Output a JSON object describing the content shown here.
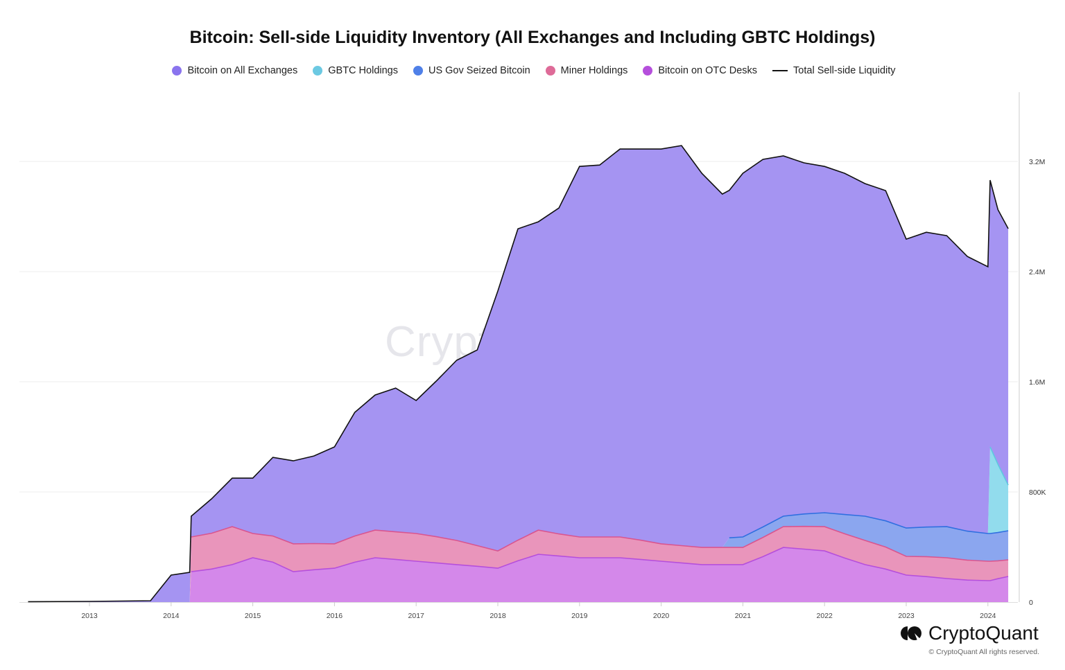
{
  "chart_data": {
    "type": "area",
    "stacked": true,
    "title": "Bitcoin: Sell-side Liquidity Inventory (All Exchanges and Including GBTC Holdings)",
    "legend_position": "top",
    "grid": true,
    "ylim": [
      0,
      3600000
    ],
    "y_ticks": [
      "0",
      "800K",
      "1.6M",
      "2.4M",
      "3.2M"
    ],
    "y_tick_values": [
      0,
      800000,
      1600000,
      2400000,
      3200000
    ],
    "x_ticks": [
      "2013",
      "2014",
      "2015",
      "2016",
      "2017",
      "2018",
      "2019",
      "2020",
      "2021",
      "2022",
      "2023",
      "2024"
    ],
    "x": [
      "2012-04-01",
      "2013-01-01",
      "2013-10-01",
      "2014-01-01",
      "2014-03-25",
      "2014-04-01",
      "2014-07-01",
      "2014-10-01",
      "2015-01-01",
      "2015-04-01",
      "2015-07-01",
      "2015-10-01",
      "2016-01-01",
      "2016-04-01",
      "2016-07-01",
      "2016-10-01",
      "2017-01-01",
      "2017-04-01",
      "2017-07-01",
      "2017-10-01",
      "2018-01-01",
      "2018-04-01",
      "2018-07-01",
      "2018-10-01",
      "2019-01-01",
      "2019-04-01",
      "2019-07-01",
      "2019-10-01",
      "2020-01-01",
      "2020-04-01",
      "2020-07-01",
      "2020-10-01",
      "2020-11-01",
      "2021-01-01",
      "2021-04-01",
      "2021-07-01",
      "2021-10-01",
      "2022-01-01",
      "2022-04-01",
      "2022-07-01",
      "2022-10-01",
      "2023-01-01",
      "2023-04-01",
      "2023-07-01",
      "2023-10-01",
      "2024-01-01",
      "2024-01-11",
      "2024-02-15",
      "2024-04-01"
    ],
    "series": [
      {
        "name": "Bitcoin on OTC Desks",
        "color": "#b54fdc",
        "fill": "#d488ea",
        "values": [
          0,
          0,
          0,
          0,
          0,
          221000,
          240000,
          272000,
          322000,
          290000,
          221000,
          235000,
          246000,
          290000,
          322000,
          310000,
          297000,
          285000,
          272000,
          260000,
          246000,
          300000,
          347000,
          335000,
          322000,
          322000,
          322000,
          310000,
          297000,
          285000,
          272000,
          272000,
          272000,
          272000,
          330000,
          397000,
          385000,
          372000,
          320000,
          272000,
          240000,
          196000,
          185000,
          171000,
          160000,
          156000,
          156000,
          170000,
          186000
        ]
      },
      {
        "name": "Miner Holdings",
        "color": "#d9558f",
        "fill": "#e995bb",
        "values": [
          0,
          0,
          0,
          0,
          0,
          252000,
          260000,
          276000,
          176000,
          190000,
          202000,
          190000,
          177000,
          190000,
          201000,
          200000,
          201000,
          190000,
          176000,
          150000,
          126000,
          150000,
          176000,
          160000,
          151000,
          151000,
          151000,
          140000,
          126000,
          125000,
          125000,
          125000,
          125000,
          125000,
          140000,
          151000,
          165000,
          176000,
          176000,
          176000,
          160000,
          136000,
          145000,
          151000,
          145000,
          141000,
          141000,
          130000,
          121000
        ]
      },
      {
        "name": "US Gov Seized Bitcoin",
        "color": "#2f6fe0",
        "fill": "#8ba6ef",
        "values": [
          0,
          0,
          0,
          0,
          0,
          0,
          0,
          0,
          0,
          0,
          0,
          0,
          0,
          0,
          0,
          0,
          0,
          0,
          0,
          0,
          0,
          0,
          0,
          0,
          0,
          0,
          0,
          0,
          0,
          0,
          0,
          0,
          70000,
          76000,
          76000,
          76000,
          90000,
          101000,
          140000,
          176000,
          190000,
          206000,
          215000,
          226000,
          210000,
          201000,
          201000,
          205000,
          211000
        ]
      },
      {
        "name": "GBTC Holdings",
        "color": "#5fc8e0",
        "fill": "#92dced",
        "values": [
          0,
          0,
          0,
          0,
          0,
          0,
          0,
          0,
          0,
          0,
          0,
          0,
          0,
          0,
          0,
          0,
          0,
          0,
          0,
          0,
          0,
          0,
          0,
          0,
          0,
          0,
          0,
          0,
          0,
          0,
          0,
          0,
          0,
          0,
          0,
          0,
          0,
          0,
          0,
          0,
          0,
          0,
          0,
          0,
          0,
          0,
          629000,
          496000,
          332000
        ]
      },
      {
        "name": "Bitcoin on All Exchanges",
        "color": "#8a74ee",
        "fill": "#a594f2",
        "values": [
          3000,
          5000,
          10000,
          196000,
          216000,
          151000,
          250000,
          352000,
          402000,
          571000,
          603000,
          636000,
          704000,
          898000,
          981000,
          1044000,
          966000,
          1130000,
          1308000,
          1421000,
          1887000,
          2261000,
          2239000,
          2367000,
          2691000,
          2701000,
          2817000,
          2840000,
          2867000,
          2905000,
          2717000,
          2566000,
          2523000,
          2641000,
          2669000,
          2616000,
          2550000,
          2515000,
          2478000,
          2415000,
          2398000,
          2098000,
          2141000,
          2113000,
          1995000,
          1937000,
          1937000,
          1849000,
          1862000
        ]
      },
      {
        "name": "Total Sell-side Liquidity",
        "color": "#111111",
        "type": "line",
        "values": [
          3000,
          5000,
          10000,
          196000,
          216000,
          624000,
          750000,
          900000,
          900000,
          1051000,
          1026000,
          1061000,
          1127000,
          1378000,
          1504000,
          1554000,
          1464000,
          1605000,
          1756000,
          1831000,
          2259000,
          2711000,
          2762000,
          2862000,
          3164000,
          3174000,
          3290000,
          3290000,
          3290000,
          3315000,
          3114000,
          2963000,
          2990000,
          3114000,
          3215000,
          3240000,
          3190000,
          3164000,
          3114000,
          3039000,
          2988000,
          2636000,
          2686000,
          2661000,
          2510000,
          2435000,
          3064000,
          2850000,
          2712000
        ]
      }
    ]
  },
  "legend": [
    {
      "label": "Bitcoin on All Exchanges",
      "color": "#8a74ee",
      "icon": "dot"
    },
    {
      "label": "GBTC Holdings",
      "color": "#6cc9e2",
      "icon": "dot"
    },
    {
      "label": "US Gov Seized Bitcoin",
      "color": "#4f80e8",
      "icon": "dot"
    },
    {
      "label": "Miner Holdings",
      "color": "#de6b98",
      "icon": "dot"
    },
    {
      "label": "Bitcoin on OTC Desks",
      "color": "#b54fdc",
      "icon": "dot"
    },
    {
      "label": "Total Sell-side Liquidity",
      "color": "#111111",
      "icon": "line"
    }
  ],
  "watermark": "CryptoQuant",
  "brand": {
    "name": "CryptoQuant",
    "copyright": "© CryptoQuant All rights reserved."
  }
}
